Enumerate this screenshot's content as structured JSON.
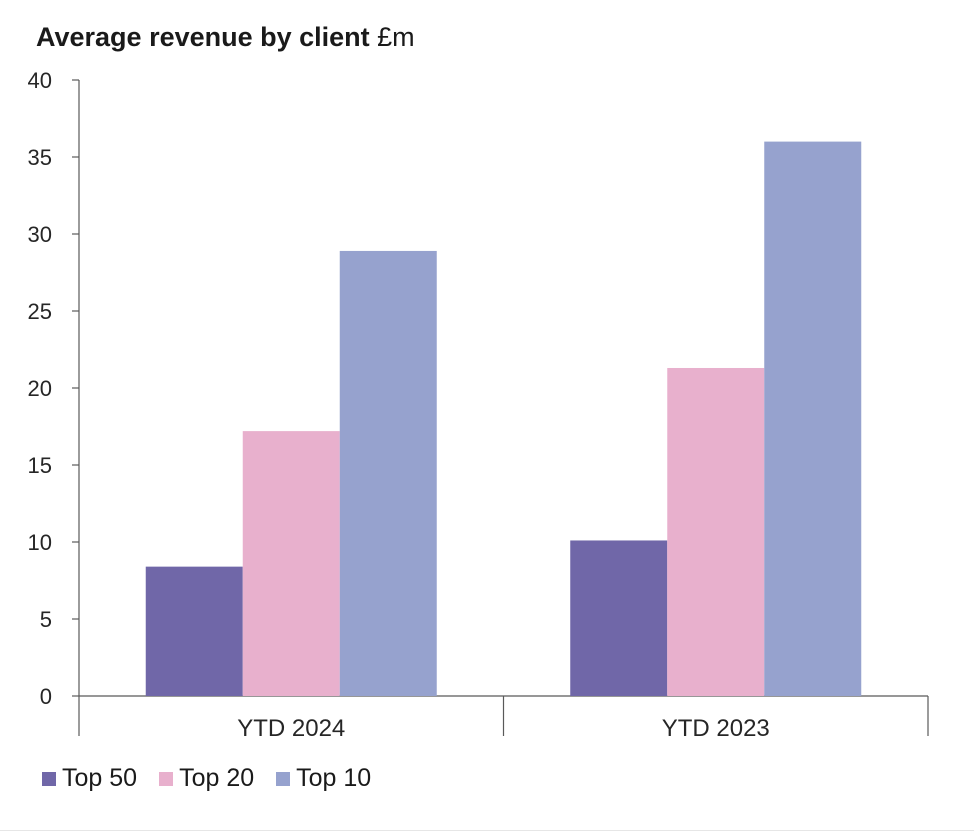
{
  "title_main": "Average revenue by client",
  "title_unit": " £m",
  "chart_data": {
    "type": "bar",
    "title": "Average revenue by client £m",
    "categories": [
      "YTD 2024",
      "YTD 2023"
    ],
    "series": [
      {
        "name": "Top 50",
        "color": "#7067a8",
        "values": [
          8.4,
          10.1
        ]
      },
      {
        "name": "Top 20",
        "color": "#e8b0cd",
        "values": [
          17.2,
          21.3
        ]
      },
      {
        "name": "Top 10",
        "color": "#96a2ce",
        "values": [
          28.9,
          36.0
        ]
      }
    ],
    "ylim": [
      0,
      40
    ],
    "yticks": [
      0,
      5,
      10,
      15,
      20,
      25,
      30,
      35,
      40
    ],
    "xlabel": "",
    "ylabel": "",
    "grid": false,
    "legend": "bottom-left"
  }
}
